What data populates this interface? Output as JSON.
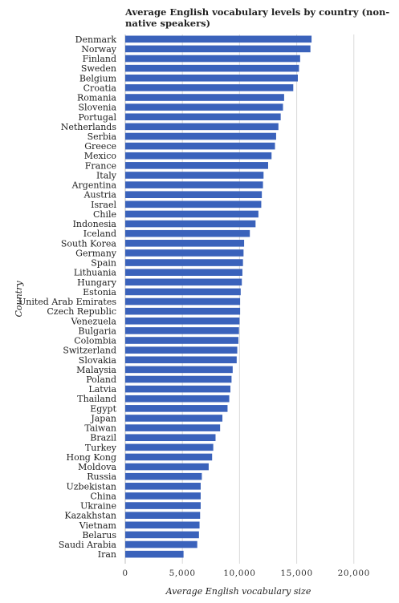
{
  "chart_data": {
    "type": "bar",
    "orientation": "horizontal",
    "title": "Average English vocabulary levels by country (non-native speakers)",
    "xlabel": "Average English vocabulary size",
    "ylabel": "Country",
    "xlim": [
      0,
      21000
    ],
    "xticks": [
      0,
      5000,
      10000,
      15000,
      20000
    ],
    "xtick_labels": [
      "0",
      "5,000",
      "10,000",
      "15,000",
      "20,000"
    ],
    "grid": "vertical",
    "bar_color": "#3a62bb",
    "categories": [
      "Denmark",
      "Norway",
      "Finland",
      "Sweden",
      "Belgium",
      "Croatia",
      "Romania",
      "Slovenia",
      "Portugal",
      "Netherlands",
      "Serbia",
      "Greece",
      "Mexico",
      "France",
      "Italy",
      "Argentina",
      "Austria",
      "Israel",
      "Chile",
      "Indonesia",
      "Iceland",
      "South Korea",
      "Germany",
      "Spain",
      "Lithuania",
      "Hungary",
      "Estonia",
      "United Arab Emirates",
      "Czech Republic",
      "Venezuela",
      "Bulgaria",
      "Colombia",
      "Switzerland",
      "Slovakia",
      "Malaysia",
      "Poland",
      "Latvia",
      "Thailand",
      "Egypt",
      "Japan",
      "Taiwan",
      "Brazil",
      "Turkey",
      "Hong Kong",
      "Moldova",
      "Russia",
      "Uzbekistan",
      "China",
      "Ukraine",
      "Kazakhstan",
      "Vietnam",
      "Belarus",
      "Saudi Arabia",
      "Iran"
    ],
    "values": [
      16300,
      16200,
      15300,
      15200,
      15100,
      14700,
      13900,
      13800,
      13600,
      13400,
      13200,
      13100,
      12800,
      12500,
      12100,
      12050,
      11950,
      11900,
      11650,
      11400,
      10900,
      10400,
      10350,
      10300,
      10250,
      10200,
      10100,
      10050,
      10050,
      10000,
      9950,
      9900,
      9800,
      9750,
      9400,
      9300,
      9200,
      9100,
      8950,
      8500,
      8300,
      7900,
      7700,
      7600,
      7300,
      6700,
      6600,
      6600,
      6600,
      6550,
      6500,
      6450,
      6300,
      5100
    ]
  }
}
